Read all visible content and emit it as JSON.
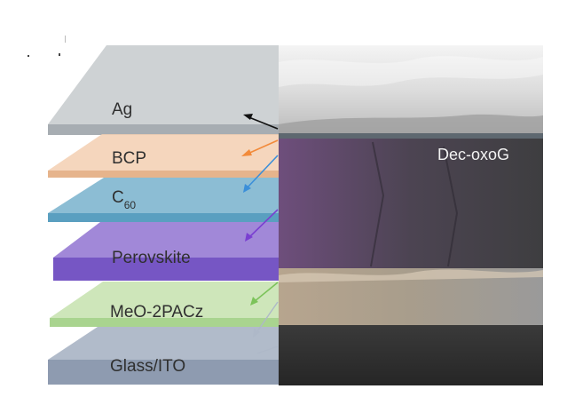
{
  "layers": [
    {
      "id": "ag",
      "label": "Ag",
      "subscript": "",
      "top_color": "#c5cacd",
      "side_color": "#a7adb2",
      "arrow_color": "#111111"
    },
    {
      "id": "bcp",
      "label": "BCP",
      "subscript": "",
      "top_color": "#f3cfb1",
      "side_color": "#e6b48c",
      "arrow_color": "#f28a3a"
    },
    {
      "id": "c60",
      "label": "C",
      "subscript": "60",
      "top_color": "#7fb6cf",
      "side_color": "#5a9fc0",
      "arrow_color": "#3b8fd9"
    },
    {
      "id": "perovskite",
      "label": "Perovskite",
      "subscript": "",
      "top_color": "#9c82d6",
      "side_color": "#7656c4",
      "arrow_color": "#7a3fd1"
    },
    {
      "id": "meo2pacz",
      "label": "MeO-2PACz",
      "subscript": "",
      "top_color": "#c9e3b3",
      "side_color": "#a9d48f",
      "arrow_color": "#7cc35a"
    },
    {
      "id": "glass_ito",
      "label": "Glass/ITO",
      "subscript": "",
      "top_color": "#a9b4c4",
      "side_color": "#8e9bb0",
      "arrow_color": "#aeb8c8"
    }
  ],
  "sem_image": {
    "label": "Dec-oxoG",
    "bands": [
      {
        "name": "ag",
        "color": "#d9d9d9"
      },
      {
        "name": "perovskite",
        "color": "#4d3d55"
      },
      {
        "name": "meo2pacz",
        "color": "#a89b88"
      },
      {
        "name": "glass_ito",
        "color": "#2e2e2e"
      }
    ]
  }
}
